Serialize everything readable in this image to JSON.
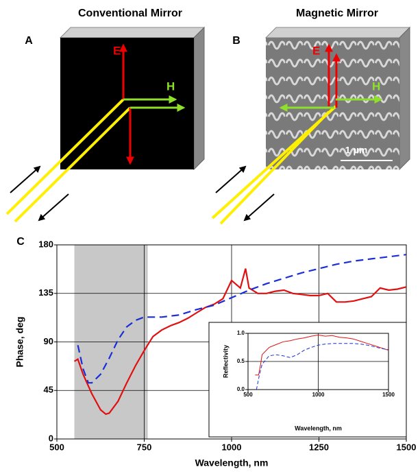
{
  "figure": {
    "panel_a": {
      "title": "Conventional Mirror",
      "label": "A",
      "e_label": "E",
      "h_label": "H"
    },
    "panel_b": {
      "title": "Magnetic Mirror",
      "label": "B",
      "e_label": "E",
      "h_label": "H",
      "scale_bar": "1 μm"
    },
    "panel_c": {
      "label": "C"
    }
  },
  "chart_data": [
    {
      "type": "line",
      "xlabel": "Wavelength, nm",
      "ylabel": "Phase, deg",
      "xlim": [
        500,
        1500
      ],
      "ylim": [
        0,
        180
      ],
      "xticks": [
        500,
        750,
        1000,
        1250,
        1500
      ],
      "yticks": [
        0,
        45,
        90,
        135,
        180
      ],
      "grid": true,
      "shaded_range": [
        550,
        760
      ],
      "shade_color": "#c8c8c8",
      "series": [
        {
          "color": "#e01010",
          "dash": false,
          "x": [
            550,
            560,
            575,
            600,
            625,
            640,
            650,
            675,
            700,
            725,
            750,
            775,
            800,
            825,
            850,
            875,
            900,
            925,
            950,
            975,
            1000,
            1025,
            1040,
            1050,
            1075,
            1100,
            1125,
            1150,
            1175,
            1200,
            1225,
            1250,
            1275,
            1300,
            1325,
            1350,
            1375,
            1400,
            1425,
            1450,
            1475,
            1500
          ],
          "values": [
            72,
            74,
            60,
            42,
            27,
            23,
            24,
            35,
            52,
            68,
            82,
            95,
            101,
            105,
            108,
            112,
            117,
            122,
            125,
            130,
            147,
            140,
            158,
            140,
            135,
            135,
            137,
            138,
            135,
            134,
            133,
            133,
            135,
            127,
            127,
            128,
            130,
            132,
            140,
            138,
            139,
            141
          ]
        },
        {
          "color": "#1a2ed8",
          "dash": true,
          "x": [
            560,
            575,
            590,
            600,
            625,
            650,
            675,
            700,
            725,
            750,
            775,
            800,
            850,
            900,
            950,
            1000,
            1050,
            1100,
            1150,
            1200,
            1250,
            1300,
            1350,
            1400,
            1450,
            1500
          ],
          "values": [
            87,
            65,
            52,
            52,
            60,
            75,
            92,
            104,
            110,
            113,
            113,
            113,
            115,
            120,
            124,
            131,
            138,
            144,
            149,
            154,
            158,
            162,
            165,
            167,
            169,
            171
          ]
        }
      ]
    },
    {
      "type": "line",
      "xlabel": "Wavelength, nm",
      "ylabel": "Reflectivity",
      "xlim": [
        500,
        1500
      ],
      "ylim": [
        0,
        1
      ],
      "xticks": [
        500,
        1000,
        1500
      ],
      "yticks": [
        {
          "value": 0,
          "label": "0.0"
        },
        {
          "value": 0.5,
          "label": "0.5"
        },
        {
          "value": 1,
          "label": "1.0"
        }
      ],
      "grid": true,
      "series": [
        {
          "color": "#e01010",
          "dash": false,
          "x": [
            550,
            575,
            590,
            600,
            650,
            700,
            750,
            800,
            850,
            900,
            950,
            1000,
            1050,
            1100,
            1150,
            1200,
            1250,
            1300,
            1350,
            1400,
            1450,
            1500
          ],
          "values": [
            0.26,
            0.26,
            0.45,
            0.62,
            0.75,
            0.8,
            0.85,
            0.87,
            0.9,
            0.92,
            0.95,
            0.97,
            0.95,
            0.96,
            0.93,
            0.92,
            0.9,
            0.86,
            0.82,
            0.78,
            0.74,
            0.7
          ]
        },
        {
          "color": "#1a2ed8",
          "dash": true,
          "x": [
            560,
            580,
            600,
            650,
            700,
            750,
            800,
            850,
            900,
            950,
            1000,
            1050,
            1100,
            1150,
            1200,
            1250,
            1300,
            1350,
            1400,
            1450,
            1500
          ],
          "values": [
            0,
            0.25,
            0.45,
            0.6,
            0.62,
            0.6,
            0.57,
            0.62,
            0.7,
            0.75,
            0.79,
            0.81,
            0.82,
            0.82,
            0.82,
            0.82,
            0.81,
            0.79,
            0.76,
            0.73,
            0.71
          ]
        }
      ]
    }
  ]
}
